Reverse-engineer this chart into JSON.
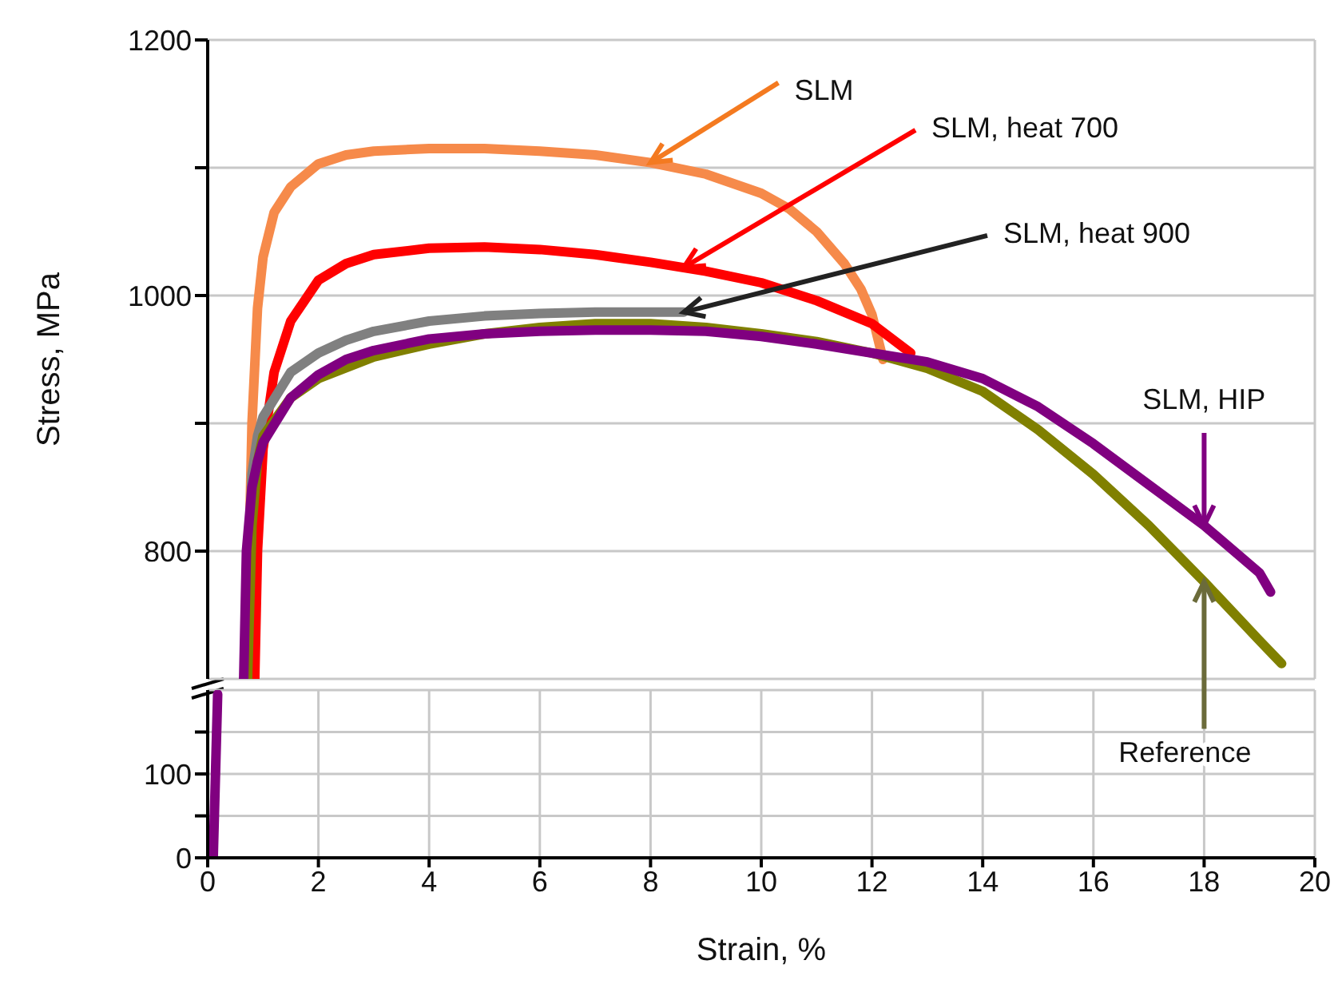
{
  "chart_data": [
    {
      "type": "line",
      "ylabel": "Stress, MPa",
      "xlim": [
        0,
        20
      ],
      "xticks": [
        0,
        2,
        4,
        6,
        8,
        10,
        12,
        14,
        16,
        18,
        20
      ],
      "ylim": [
        700,
        1200
      ],
      "yticks": [
        800,
        {
          "value": 900,
          "label": null
        },
        1000,
        {
          "value": 1100,
          "label": null
        },
        1200
      ],
      "grid": true,
      "tick_labels": "y",
      "line_style": "solid",
      "marker": "none",
      "series": [
        {
          "color": "#f68a4a",
          "x": [
            0.72,
            0.75,
            0.8,
            0.9,
            1.0,
            1.2,
            1.5,
            2.0,
            2.5,
            3,
            4,
            5,
            6,
            7,
            8,
            9,
            10,
            10.5,
            11,
            11.5,
            11.8,
            12.0,
            12.2
          ],
          "values": [
            700,
            800,
            900,
            990,
            1030,
            1065,
            1085,
            1103,
            1110,
            1113,
            1115,
            1115,
            1113,
            1110,
            1104,
            1095,
            1080,
            1068,
            1050,
            1025,
            1005,
            985,
            950
          ]
        },
        {
          "color": "#ff0000",
          "x": [
            0.85,
            0.9,
            1.0,
            1.2,
            1.5,
            2.0,
            2.5,
            3,
            4,
            5,
            6,
            7,
            8,
            9,
            10,
            11,
            12,
            12.7
          ],
          "values": [
            700,
            800,
            880,
            940,
            980,
            1012,
            1025,
            1032,
            1037,
            1038,
            1036,
            1032,
            1026,
            1019,
            1010,
            996,
            978,
            955
          ]
        },
        {
          "color": "#808080",
          "x": [
            0.7,
            0.75,
            0.8,
            0.9,
            1.0,
            1.5,
            2.0,
            2.5,
            3,
            4,
            5,
            6,
            7,
            8,
            8.6
          ],
          "values": [
            700,
            800,
            860,
            890,
            905,
            940,
            955,
            965,
            972,
            980,
            984,
            986,
            987,
            987,
            987
          ]
        },
        {
          "color": "#808000",
          "x": [
            0.72,
            0.8,
            0.9,
            1.0,
            1.5,
            2,
            3,
            4,
            5,
            6,
            7,
            8,
            9,
            10,
            11,
            12,
            13,
            14,
            15,
            16,
            17,
            18,
            19,
            19.4
          ],
          "values": [
            700,
            820,
            870,
            890,
            920,
            935,
            952,
            962,
            970,
            975,
            978,
            978,
            975,
            970,
            964,
            955,
            943,
            925,
            895,
            860,
            820,
            776,
            730,
            712
          ]
        },
        {
          "color": "#800080",
          "x": [
            0.65,
            0.7,
            0.8,
            0.9,
            1.0,
            1.5,
            2,
            2.5,
            3,
            4,
            5,
            6,
            7,
            8,
            9,
            10,
            11,
            12,
            13,
            14,
            15,
            16,
            17,
            18,
            19,
            19.2
          ],
          "values": [
            700,
            800,
            850,
            870,
            885,
            920,
            938,
            950,
            957,
            966,
            970,
            972,
            973,
            973,
            972,
            968,
            962,
            955,
            948,
            935,
            913,
            884,
            852,
            820,
            783,
            768
          ]
        }
      ],
      "annotations": [
        {
          "text": "SLM",
          "x": 8,
          "y": 1104
        },
        {
          "text": "SLM, heat 700",
          "x": 8.6,
          "y": 1022
        },
        {
          "text": "SLM, heat 900",
          "x": 8.6,
          "y": 987
        },
        {
          "text": "SLM, HIP",
          "x": 18,
          "y": 820
        },
        {
          "text": "Reference",
          "x": 18,
          "y": 776
        }
      ]
    },
    {
      "type": "line",
      "xlabel": "Strain, %",
      "xlim": [
        0,
        20
      ],
      "xticks": [
        0,
        2,
        4,
        6,
        8,
        10,
        12,
        14,
        16,
        18,
        20
      ],
      "ylim": [
        0,
        200
      ],
      "yticks": [
        0,
        {
          "value": 50,
          "label": null
        },
        100,
        {
          "value": 150,
          "label": null
        }
      ],
      "grid": true,
      "line_style": "solid",
      "marker": "none",
      "series": [
        {
          "color": "#800080",
          "x": [
            0.1,
            0.18
          ],
          "values": [
            0,
            195
          ]
        }
      ]
    }
  ]
}
